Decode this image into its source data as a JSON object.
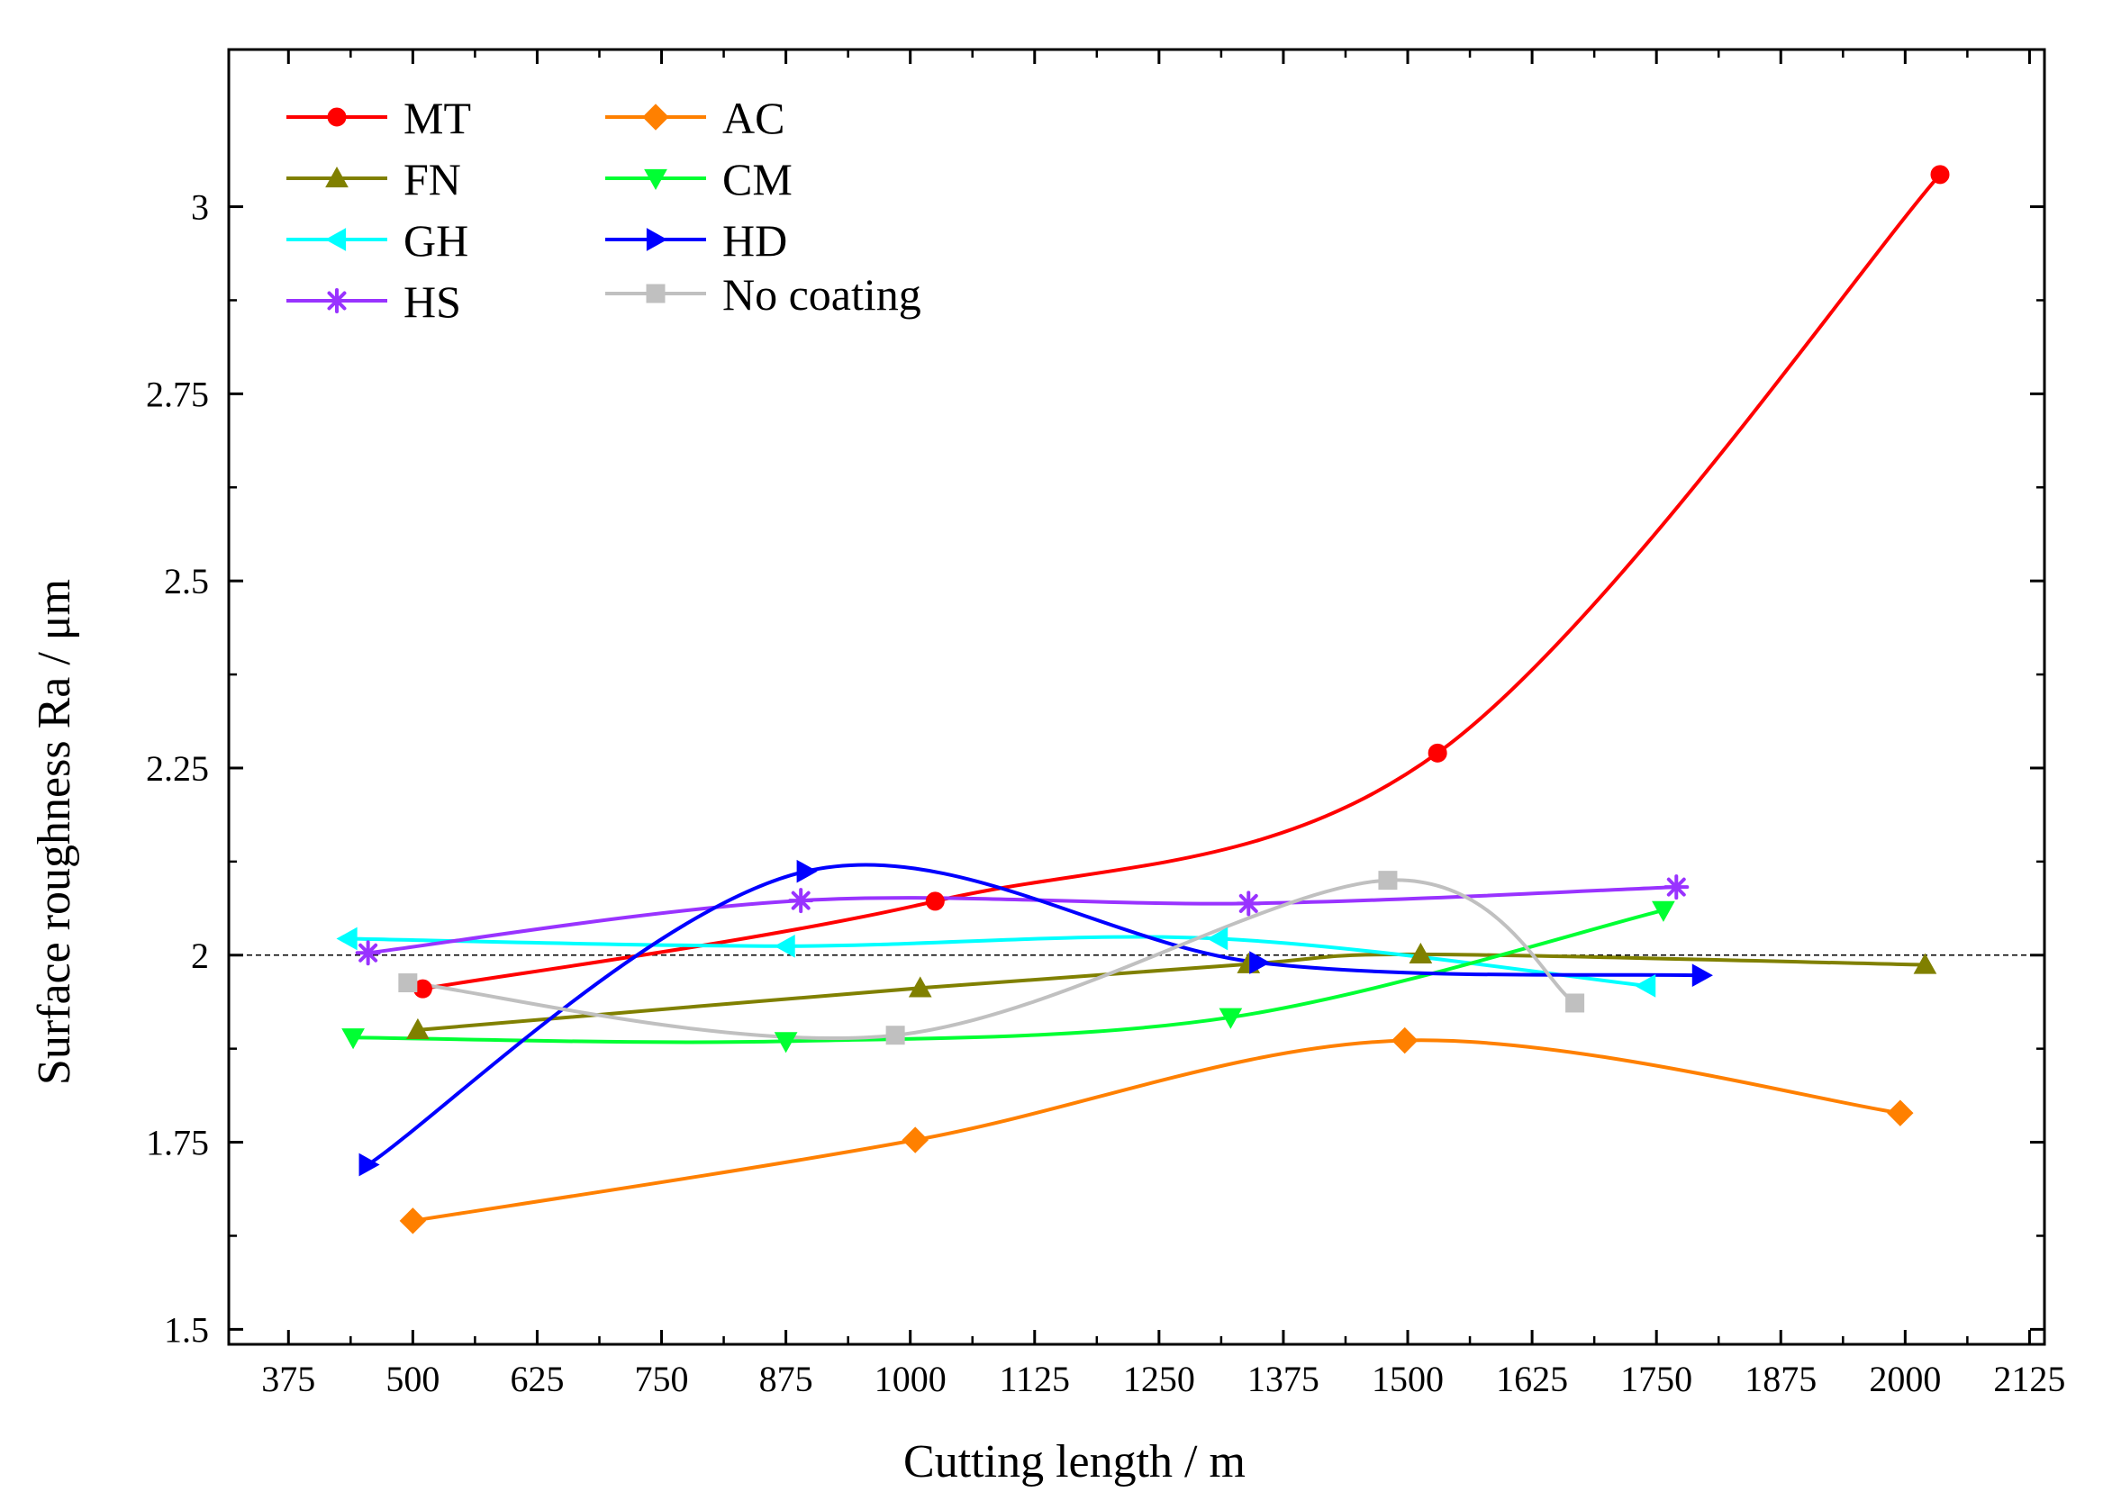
{
  "chart_data": {
    "type": "line",
    "title": "",
    "xlabel": "Cutting length / m",
    "ylabel": "Surface roughness Ra / μm",
    "xlim": [
      315,
      2140
    ],
    "ylim": [
      1.48,
      3.21
    ],
    "xticks": [
      375,
      500,
      625,
      750,
      875,
      1000,
      1125,
      1250,
      1375,
      1500,
      1625,
      1750,
      1875,
      2000,
      2125
    ],
    "xtick_labels": [
      "375",
      "500",
      "625",
      "750",
      "875",
      "1000",
      "1125",
      "1250",
      "1375",
      "1500",
      "1625",
      "1750",
      "1875",
      "2000",
      "2125"
    ],
    "yticks": [
      1.5,
      1.75,
      2,
      2.25,
      2.5,
      2.75,
      3
    ],
    "ytick_labels": [
      "1.5",
      "1.75",
      "2",
      "2.25",
      "2.5",
      "2.75",
      "3"
    ],
    "reference_line": 2.0,
    "legend_position": "top-left",
    "series": [
      {
        "name": "MT",
        "label": "MT",
        "color": "#ff0000",
        "marker": "circle",
        "x": [
          510,
          1025,
          1530,
          2035
        ],
        "y": [
          1.955,
          2.072,
          2.27,
          3.043
        ]
      },
      {
        "name": "FN",
        "label": "FN",
        "color": "#808000",
        "marker": "triangle-up",
        "x": [
          505,
          1010,
          1340,
          1513,
          2020
        ],
        "y": [
          1.9,
          1.956,
          1.988,
          2.001,
          1.987
        ]
      },
      {
        "name": "GH",
        "label": "GH",
        "color": "#00ffff",
        "marker": "triangle-left",
        "x": [
          435,
          875,
          1310,
          1740
        ],
        "y": [
          2.022,
          2.012,
          2.022,
          1.959
        ]
      },
      {
        "name": "HS",
        "label": "HS",
        "color": "#9933ff",
        "marker": "asterisk",
        "x": [
          455,
          890,
          1340,
          1770
        ],
        "y": [
          2.003,
          2.073,
          2.069,
          2.091
        ]
      },
      {
        "name": "AC",
        "label": "AC",
        "color": "#ff8000",
        "marker": "diamond",
        "x": [
          500,
          1005,
          1497,
          1995
        ],
        "y": [
          1.645,
          1.753,
          1.886,
          1.789
        ]
      },
      {
        "name": "CM",
        "label": "CM",
        "color": "#00ff33",
        "marker": "triangle-down",
        "x": [
          440,
          875,
          1322,
          1757
        ],
        "y": [
          1.89,
          1.885,
          1.917,
          2.06
        ]
      },
      {
        "name": "HD",
        "label": "HD",
        "color": "#0000ff",
        "marker": "triangle-right",
        "x": [
          455,
          895,
          1350,
          1795
        ],
        "y": [
          1.72,
          2.112,
          1.99,
          1.973
        ]
      },
      {
        "name": "No coating",
        "label": "No coating",
        "color": "#c0c0c0",
        "marker": "square",
        "x": [
          495,
          985,
          1480,
          1668
        ],
        "y": [
          1.963,
          1.893,
          2.1,
          1.936
        ]
      }
    ]
  }
}
